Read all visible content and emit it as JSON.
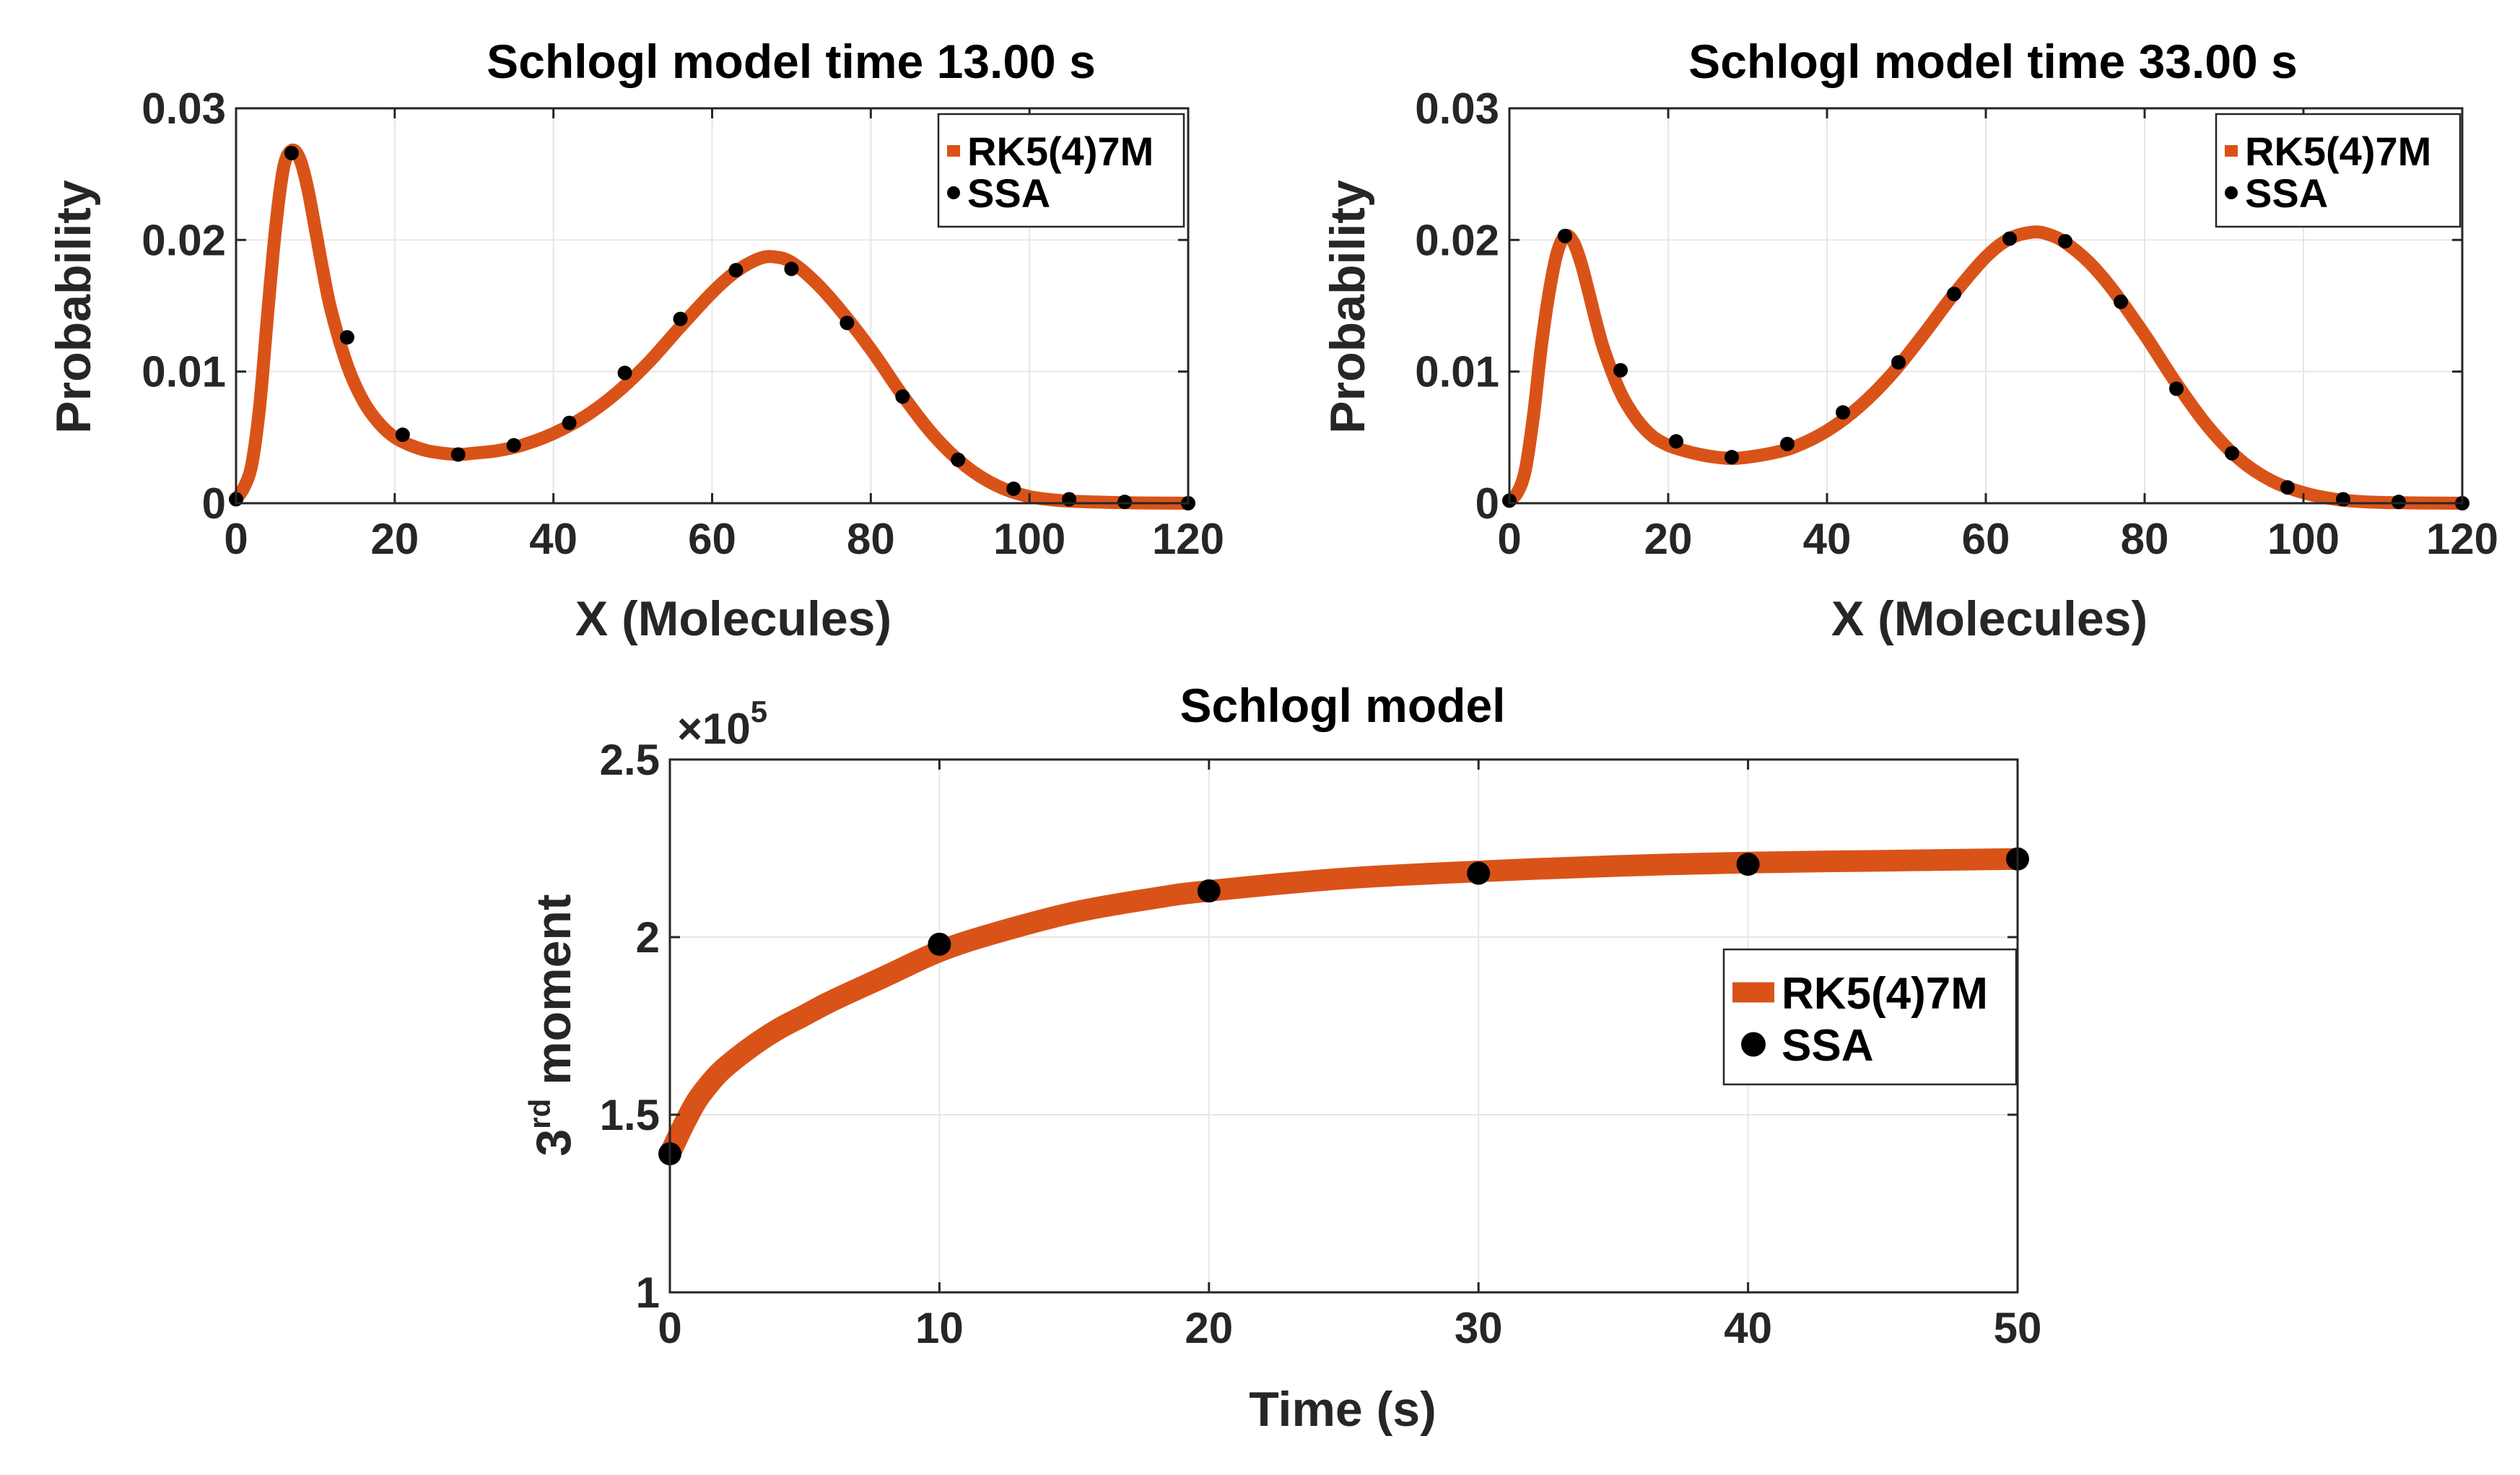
{
  "colors": {
    "rk_line": "#D95319",
    "ssa_marker": "#000000",
    "axis": "#262626",
    "grid": "#e6e6e6"
  },
  "chart_data": [
    {
      "type": "line",
      "title": "Schlogl model time 13.00 s",
      "xlabel": "X (Molecules)",
      "ylabel": "Probability",
      "xlim": [
        0,
        120
      ],
      "ylim": [
        0,
        0.03
      ],
      "xticks": [
        "0",
        "20",
        "40",
        "60",
        "80",
        "100",
        "120"
      ],
      "yticks": [
        "0",
        "0.01",
        "0.02",
        "0.03"
      ],
      "grid": true,
      "legend": {
        "position": "top-right",
        "entries": [
          "RK5(4)7M",
          "SSA"
        ]
      },
      "series": [
        {
          "name": "RK5(4)7M",
          "style": "line",
          "x": [
            0,
            1,
            2,
            3,
            4,
            5,
            6,
            7,
            8,
            9,
            10,
            11,
            12,
            14,
            16,
            18,
            20,
            22,
            24,
            26,
            28,
            30,
            33,
            36,
            40,
            44,
            48,
            52,
            56,
            60,
            63,
            66,
            68,
            70,
            73,
            76,
            80,
            84,
            88,
            92,
            96,
            100,
            104,
            108,
            112,
            116,
            120
          ],
          "values": [
            0.0003,
            0.0012,
            0.003,
            0.0075,
            0.0145,
            0.021,
            0.0255,
            0.0268,
            0.0262,
            0.024,
            0.0208,
            0.0175,
            0.0146,
            0.0105,
            0.0078,
            0.0061,
            0.005,
            0.0044,
            0.004,
            0.0038,
            0.0037,
            0.0038,
            0.004,
            0.0044,
            0.0053,
            0.0066,
            0.0084,
            0.0107,
            0.0134,
            0.016,
            0.0176,
            0.0186,
            0.0187,
            0.0183,
            0.0168,
            0.0148,
            0.0117,
            0.0082,
            0.0051,
            0.0028,
            0.0013,
            0.0005,
            0.0002,
            0.0001,
            4e-05,
            1e-05,
            0.0
          ]
        },
        {
          "name": "SSA",
          "style": "markers",
          "x": [
            0,
            7,
            14,
            21,
            28,
            35,
            42,
            49,
            56,
            63,
            70,
            77,
            84,
            91,
            98,
            105,
            112,
            120
          ],
          "values": [
            0.0003,
            0.0266,
            0.0126,
            0.0052,
            0.0037,
            0.0044,
            0.0061,
            0.0099,
            0.014,
            0.0177,
            0.0178,
            0.0137,
            0.0081,
            0.0033,
            0.0011,
            0.0003,
            0.0001,
            0.0
          ]
        }
      ]
    },
    {
      "type": "line",
      "title": "Schlogl model time 33.00 s",
      "xlabel": "X (Molecules)",
      "ylabel": "Probability",
      "xlim": [
        0,
        120
      ],
      "ylim": [
        0,
        0.03
      ],
      "xticks": [
        "0",
        "20",
        "40",
        "60",
        "80",
        "100",
        "120"
      ],
      "yticks": [
        "0",
        "0.01",
        "0.02",
        "0.03"
      ],
      "grid": true,
      "legend": {
        "position": "top-right",
        "entries": [
          "RK5(4)7M",
          "SSA"
        ]
      },
      "series": [
        {
          "name": "RK5(4)7M",
          "style": "line",
          "x": [
            0,
            1,
            2,
            3,
            4,
            5,
            6,
            7,
            8,
            9,
            10,
            11,
            12,
            14,
            16,
            18,
            20,
            22,
            24,
            26,
            28,
            30,
            33,
            36,
            40,
            44,
            48,
            52,
            56,
            60,
            63,
            66,
            68,
            70,
            73,
            76,
            80,
            84,
            88,
            92,
            96,
            100,
            104,
            108,
            112,
            116,
            120
          ],
          "values": [
            0.0002,
            0.0008,
            0.0025,
            0.0065,
            0.0118,
            0.016,
            0.019,
            0.0203,
            0.0199,
            0.0183,
            0.016,
            0.0136,
            0.0115,
            0.0084,
            0.0064,
            0.0051,
            0.0044,
            0.004,
            0.0037,
            0.0035,
            0.0034,
            0.0035,
            0.0038,
            0.0043,
            0.0055,
            0.0073,
            0.0097,
            0.0127,
            0.0159,
            0.0187,
            0.0201,
            0.0206,
            0.0204,
            0.0198,
            0.0183,
            0.0162,
            0.0128,
            0.0091,
            0.0058,
            0.0033,
            0.0017,
            0.0008,
            0.0003,
            0.0001,
            4e-05,
            1e-05,
            0.0
          ]
        },
        {
          "name": "SSA",
          "style": "markers",
          "x": [
            0,
            7,
            14,
            21,
            28,
            35,
            42,
            49,
            56,
            63,
            70,
            77,
            84,
            91,
            98,
            105,
            112,
            120
          ],
          "values": [
            0.0002,
            0.0203,
            0.0101,
            0.0047,
            0.0035,
            0.0045,
            0.0069,
            0.0107,
            0.0159,
            0.0201,
            0.0199,
            0.0153,
            0.0087,
            0.0038,
            0.0012,
            0.0003,
            0.0001,
            0.0
          ]
        }
      ]
    },
    {
      "type": "line",
      "title": "Schlogl model",
      "xlabel": "Time (s)",
      "ylabel_base": "3",
      "ylabel_sup": "rd",
      "ylabel_rest": " moment",
      "y_exponent_label": "×10",
      "y_exponent_power": "5",
      "xlim": [
        0,
        50
      ],
      "ylim": [
        1,
        2.5
      ],
      "xticks": [
        "0",
        "10",
        "20",
        "30",
        "40",
        "50"
      ],
      "yticks": [
        "1",
        "1.5",
        "2",
        "2.5"
      ],
      "grid": true,
      "legend": {
        "position": "right",
        "entries": [
          "RK5(4)7M",
          "SSA"
        ]
      },
      "series": [
        {
          "name": "RK5(4)7M",
          "style": "line",
          "x": [
            0,
            0.25,
            0.5,
            1,
            1.5,
            2,
            3,
            4,
            5,
            6,
            8,
            10,
            12,
            15,
            18,
            20,
            25,
            30,
            35,
            40,
            45,
            50
          ],
          "values": [
            1.39,
            1.43,
            1.47,
            1.54,
            1.59,
            1.63,
            1.69,
            1.74,
            1.78,
            1.82,
            1.89,
            1.96,
            2.01,
            2.07,
            2.11,
            2.13,
            2.165,
            2.185,
            2.2,
            2.21,
            2.215,
            2.22
          ]
        },
        {
          "name": "SSA",
          "style": "markers",
          "x": [
            0,
            10,
            20,
            30,
            40,
            50
          ],
          "values": [
            1.39,
            1.98,
            2.13,
            2.18,
            2.205,
            2.22
          ]
        }
      ]
    }
  ]
}
